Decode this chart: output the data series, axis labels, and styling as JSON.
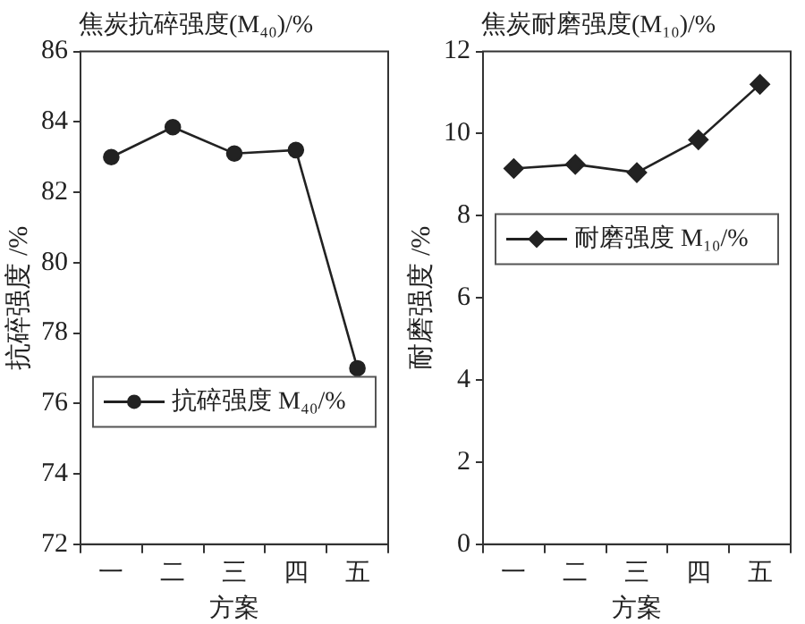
{
  "chart_data": [
    {
      "type": "line",
      "title": "焦炭抗碎强度(M₄₀)/%",
      "xlabel": "方案",
      "ylabel": "抗碎强度 /%",
      "categories": [
        "一",
        "二",
        "三",
        "四",
        "五"
      ],
      "series": [
        {
          "name": "抗碎强度 M₄₀/%",
          "color": "#222222",
          "values": [
            83.0,
            83.85,
            83.1,
            83.2,
            77.0
          ]
        }
      ],
      "ylim": [
        72,
        86
      ],
      "yticks": [
        72,
        74,
        76,
        78,
        80,
        82,
        84,
        86
      ],
      "marker": "circle",
      "legend": "bottom",
      "grid": false
    },
    {
      "type": "line",
      "title": "焦炭耐磨强度(M₁₀)/%",
      "xlabel": "方案",
      "ylabel": "耐磨强度 /%",
      "categories": [
        "一",
        "二",
        "三",
        "四",
        "五"
      ],
      "series": [
        {
          "name": "耐磨强度 M₁₀/%",
          "color": "#222222",
          "values": [
            9.15,
            9.25,
            9.05,
            9.85,
            11.2
          ]
        }
      ],
      "ylim": [
        0,
        12
      ],
      "yticks": [
        0,
        2,
        4,
        6,
        8,
        10,
        12
      ],
      "marker": "diamond",
      "legend": "center",
      "grid": false
    }
  ]
}
